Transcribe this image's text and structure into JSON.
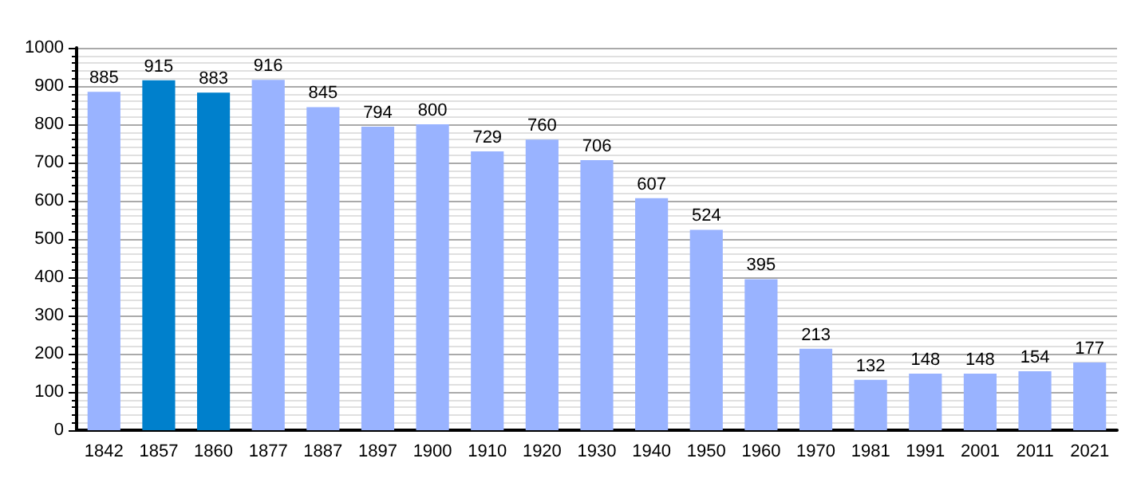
{
  "chart_data": {
    "type": "bar",
    "categories": [
      "1842",
      "1857",
      "1860",
      "1877",
      "1887",
      "1897",
      "1900",
      "1910",
      "1920",
      "1930",
      "1940",
      "1950",
      "1960",
      "1970",
      "1981",
      "1991",
      "2001",
      "2011",
      "2021"
    ],
    "values": [
      885,
      915,
      883,
      916,
      845,
      794,
      800,
      729,
      760,
      706,
      607,
      524,
      395,
      213,
      132,
      148,
      148,
      154,
      177
    ],
    "colors": [
      "#99b3ff",
      "#0080cc",
      "#0080cc",
      "#99b3ff",
      "#99b3ff",
      "#99b3ff",
      "#99b3ff",
      "#99b3ff",
      "#99b3ff",
      "#99b3ff",
      "#99b3ff",
      "#99b3ff",
      "#99b3ff",
      "#99b3ff",
      "#99b3ff",
      "#99b3ff",
      "#99b3ff",
      "#99b3ff",
      "#99b3ff"
    ],
    "ylim": [
      0,
      1000
    ],
    "yticks": [
      0,
      100,
      200,
      300,
      400,
      500,
      600,
      700,
      800,
      900,
      1000
    ],
    "grid": "y",
    "data_labels": true
  }
}
